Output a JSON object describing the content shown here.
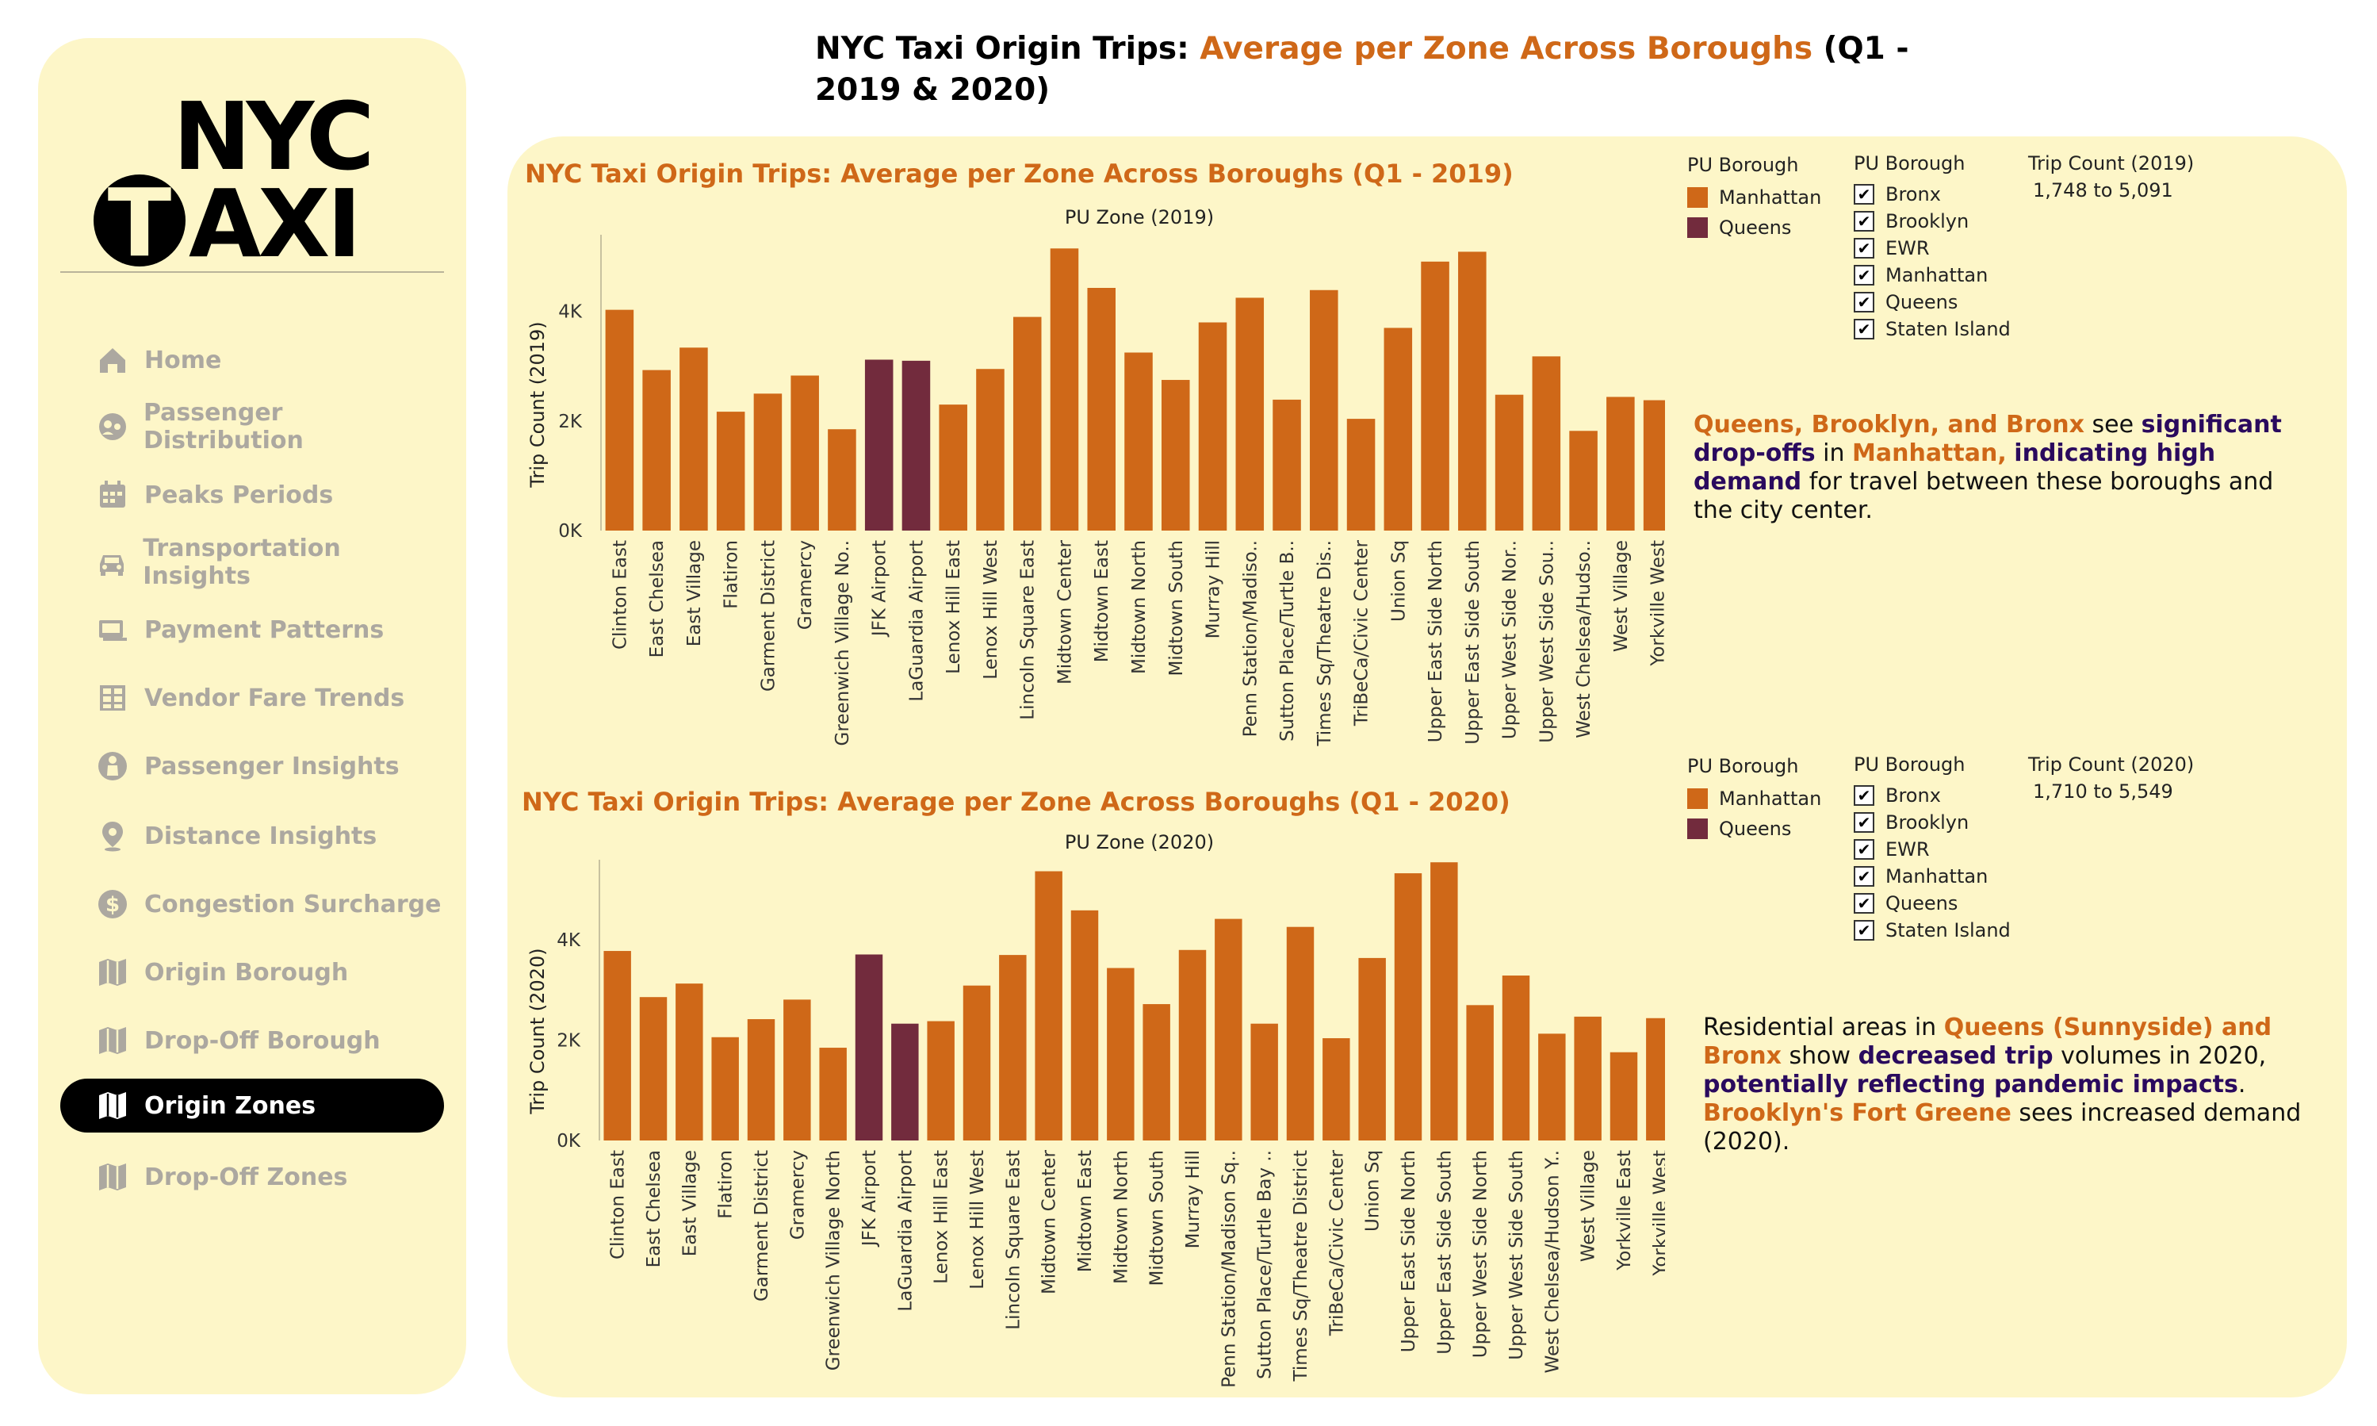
{
  "header": {
    "title_prefix": "NYC Taxi Origin Trips: ",
    "title_highlight": "Average per Zone Across Boroughs",
    "title_suffix": " (Q1 - 2019 & 2020)"
  },
  "sidebar": {
    "logo_text_top": "NYC",
    "logo_text_bottom": "AXI",
    "logo_circle_letter": "T",
    "items": [
      {
        "label": "Home",
        "icon": "home-icon",
        "active": false
      },
      {
        "label": "Passenger Distribution",
        "icon": "passenger-icon",
        "active": false
      },
      {
        "label": "Peaks Periods",
        "icon": "calendar-icon",
        "active": false
      },
      {
        "label": "Transportation Insights",
        "icon": "car-icon",
        "active": false
      },
      {
        "label": "Payment Patterns",
        "icon": "payment-icon",
        "active": false
      },
      {
        "label": "Vendor Fare Trends",
        "icon": "table-icon",
        "active": false
      },
      {
        "label": "Passenger Insights",
        "icon": "person-icon",
        "active": false
      },
      {
        "label": "Distance Insights",
        "icon": "location-pin-icon",
        "active": false
      },
      {
        "label": "Congestion Surcharge",
        "icon": "dollar-icon",
        "active": false
      },
      {
        "label": "Origin Borough",
        "icon": "map-icon",
        "active": false
      },
      {
        "label": "Drop-Off Borough",
        "icon": "map-icon",
        "active": false
      },
      {
        "label": "Origin Zones",
        "icon": "map-icon",
        "active": true
      },
      {
        "label": "Drop-Off Zones",
        "icon": "map-icon",
        "active": false
      }
    ]
  },
  "colors": {
    "manhattan": "#cf6818",
    "queens": "#722b3d",
    "panel_bg": "#fdf6c8",
    "accent_purple": "#2a0a5e"
  },
  "legends": {
    "chart1": {
      "color_heading": "PU Borough",
      "color_items": [
        {
          "label": "Manhattan",
          "color": "#cf6818"
        },
        {
          "label": "Queens",
          "color": "#722b3d"
        }
      ],
      "filter_heading": "PU Borough",
      "filter_items": [
        "Bronx",
        "Brooklyn",
        "EWR",
        "Manhattan",
        "Queens",
        "Staten Island"
      ],
      "range_heading": "Trip Count (2019)",
      "range_value": "1,748 to 5,091"
    },
    "chart2": {
      "color_heading": "PU Borough",
      "color_items": [
        {
          "label": "Manhattan",
          "color": "#cf6818"
        },
        {
          "label": "Queens",
          "color": "#722b3d"
        }
      ],
      "filter_heading": "PU Borough",
      "filter_items": [
        "Bronx",
        "Brooklyn",
        "EWR",
        "Manhattan",
        "Queens",
        "Staten Island"
      ],
      "range_heading": "Trip Count (2020)",
      "range_value": "1,710 to 5,549"
    }
  },
  "annotations": {
    "a1": {
      "p1": "Queens, Brooklyn, and Bronx",
      "p2": " see ",
      "p3": "significant drop-offs",
      "p4": " in ",
      "p5": "Manhattan,",
      "p6": " ",
      "p7": "indicating high demand",
      "p8": " for travel between these boroughs and the city center."
    },
    "a2": {
      "p1": "Residential areas in ",
      "p2": "Queens (Sunnyside) and Bronx",
      "p3": " show ",
      "p4": "decreased trip",
      "p5": " volumes in 2020, ",
      "p6": "potentially reflecting pandemic impacts",
      "p7": ". ",
      "p8": "Brooklyn's Fort Greene",
      "p9": " sees increased demand (2020)."
    }
  },
  "chart_data": [
    {
      "type": "bar",
      "title": "NYC Taxi Origin Trips: Average per Zone Across Boroughs (Q1 - 2019)",
      "xlabel": "PU Zone (2019)",
      "ylabel": "Trip Count (2019)",
      "ylim": [
        0,
        5400
      ],
      "yticks": [
        0,
        2000,
        4000
      ],
      "ytick_labels": [
        "0K",
        "2K",
        "4K"
      ],
      "categories": [
        "Clinton East",
        "East Chelsea",
        "East Village",
        "Flatiron",
        "Garment District",
        "Gramercy",
        "Greenwich Village No..",
        "JFK Airport",
        "LaGuardia Airport",
        "Lenox Hill East",
        "Lenox Hill West",
        "Lincoln Square East",
        "Midtown Center",
        "Midtown East",
        "Midtown North",
        "Midtown South",
        "Murray Hill",
        "Penn Station/Madiso..",
        "Sutton Place/Turtle B..",
        "Times Sq/Theatre Dis..",
        "TriBeCa/Civic Center",
        "Union Sq",
        "Upper East Side North",
        "Upper East Side South",
        "Upper West Side Nor..",
        "Upper West Side Sou..",
        "West Chelsea/Hudso..",
        "West Village",
        "Yorkville West"
      ],
      "values": [
        4030,
        2930,
        3340,
        2170,
        2500,
        2830,
        1850,
        3120,
        3100,
        2300,
        2950,
        3900,
        5150,
        4430,
        3250,
        2750,
        3800,
        4250,
        2390,
        4390,
        2040,
        3700,
        4910,
        5090,
        2480,
        3180,
        1820,
        2440,
        2380
      ],
      "boroughs": [
        "Manhattan",
        "Manhattan",
        "Manhattan",
        "Manhattan",
        "Manhattan",
        "Manhattan",
        "Manhattan",
        "Queens",
        "Queens",
        "Manhattan",
        "Manhattan",
        "Manhattan",
        "Manhattan",
        "Manhattan",
        "Manhattan",
        "Manhattan",
        "Manhattan",
        "Manhattan",
        "Manhattan",
        "Manhattan",
        "Manhattan",
        "Manhattan",
        "Manhattan",
        "Manhattan",
        "Manhattan",
        "Manhattan",
        "Manhattan",
        "Manhattan",
        "Manhattan"
      ],
      "grid": false,
      "legend": "top-right"
    },
    {
      "type": "bar",
      "title": "NYC Taxi Origin Trips: Average per Zone Across Boroughs (Q1 - 2020)",
      "xlabel": "PU Zone (2020)",
      "ylabel": "Trip Count (2020)",
      "ylim": [
        0,
        5600
      ],
      "yticks": [
        0,
        2000,
        4000
      ],
      "ytick_labels": [
        "0K",
        "2K",
        "4K"
      ],
      "categories": [
        "Clinton East",
        "East Chelsea",
        "East Village",
        "Flatiron",
        "Garment District",
        "Gramercy",
        "Greenwich Village North",
        "JFK Airport",
        "LaGuardia Airport",
        "Lenox Hill East",
        "Lenox Hill West",
        "Lincoln Square East",
        "Midtown Center",
        "Midtown East",
        "Midtown North",
        "Midtown South",
        "Murray Hill",
        "Penn Station/Madison Sq..",
        "Sutton Place/Turtle Bay ..",
        "Times Sq/Theatre District",
        "TriBeCa/Civic Center",
        "Union Sq",
        "Upper East Side North",
        "Upper East Side South",
        "Upper West Side North",
        "Upper West Side South",
        "West Chelsea/Hudson Y..",
        "West Village",
        "Yorkville East",
        "Yorkville West"
      ],
      "values": [
        3780,
        2860,
        3130,
        2060,
        2420,
        2810,
        1850,
        3710,
        2330,
        2380,
        3090,
        3700,
        5370,
        4590,
        3440,
        2720,
        3800,
        4420,
        2330,
        4260,
        2040,
        3640,
        5330,
        5549,
        2700,
        3290,
        2130,
        2470,
        1760,
        2440
      ],
      "boroughs": [
        "Manhattan",
        "Manhattan",
        "Manhattan",
        "Manhattan",
        "Manhattan",
        "Manhattan",
        "Manhattan",
        "Queens",
        "Queens",
        "Manhattan",
        "Manhattan",
        "Manhattan",
        "Manhattan",
        "Manhattan",
        "Manhattan",
        "Manhattan",
        "Manhattan",
        "Manhattan",
        "Manhattan",
        "Manhattan",
        "Manhattan",
        "Manhattan",
        "Manhattan",
        "Manhattan",
        "Manhattan",
        "Manhattan",
        "Manhattan",
        "Manhattan",
        "Manhattan",
        "Manhattan"
      ],
      "grid": false,
      "legend": "top-right"
    }
  ]
}
